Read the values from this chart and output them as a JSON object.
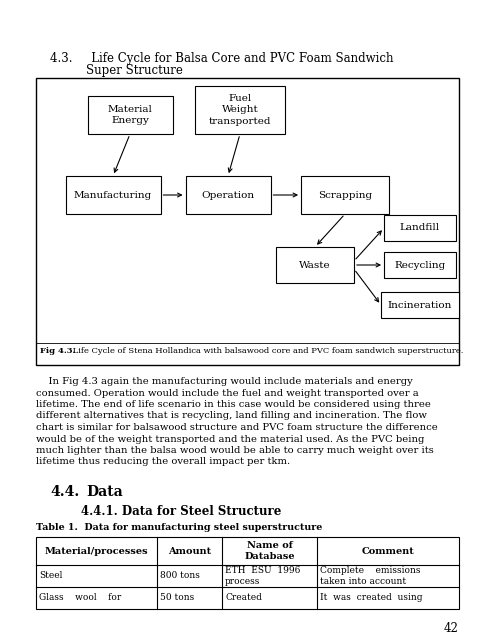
{
  "title_line1": "4.3.     Life Cycle for Balsa Core and PVC Foam Sandwich",
  "title_line2": "Super Structure",
  "fig_caption_bold": "Fig 4.3.",
  "fig_caption_rest": " Life Cycle of Stena Hollandica with balsawood core and PVC foam sandwich superstructure.",
  "section_44": "4.4.",
  "section_44_tab": "        Data",
  "section_441": "4.4.1. Data for Steel Structure",
  "table_caption": "Table 1.  Data for manufacturing steel superstructure",
  "table_headers": [
    "Material/processes",
    "Amount",
    "Name of\nDatabase",
    "Comment"
  ],
  "table_row1_col0": "Steel",
  "table_row1_col1": "800 tons",
  "table_row1_col2": "ETH  ESU  1996\nprocess",
  "table_row1_col3": "Complete    emissions\ntaken into account",
  "table_row2_col0": "Glass    wool    for",
  "table_row2_col1": "50 tons",
  "table_row2_col2": "Created",
  "table_row2_col3": "It  was  created  using",
  "body_lines": [
    "    In Fig 4.3 again the manufacturing would include materials and energy",
    "consumed. Operation would include the fuel and weight transported over a",
    "lifetime. The end of life scenario in this case would be considered using three",
    "different alternatives that is recycling, land filling and incineration. The flow",
    "chart is similar for balsawood structure and PVC foam structure the difference",
    "would be of the weight transported and the material used. As the PVC being",
    "much lighter than the balsa wood would be able to carry much weight over its",
    "lifetime thus reducing the overall impact per tkm."
  ],
  "page_number": "42",
  "bg_color": "#ffffff"
}
